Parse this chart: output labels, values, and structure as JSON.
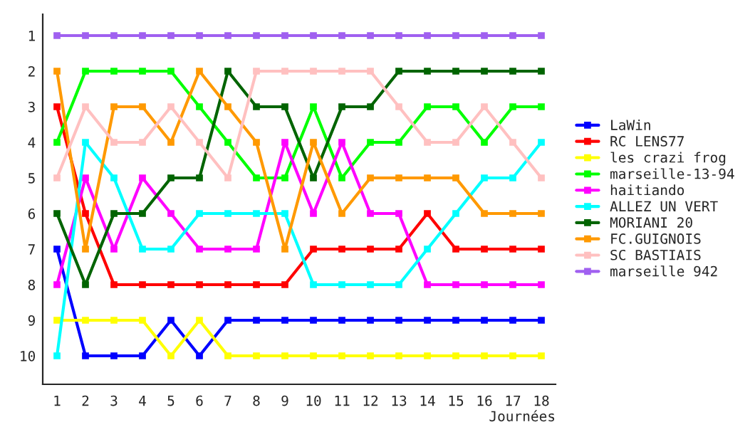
{
  "chart_data": {
    "type": "line",
    "xlabel": "Journées",
    "x": [
      1,
      2,
      3,
      4,
      5,
      6,
      7,
      8,
      9,
      10,
      11,
      12,
      13,
      14,
      15,
      16,
      17,
      18
    ],
    "xlim": [
      0.5,
      18.5
    ],
    "xticks": [
      1,
      2,
      3,
      4,
      5,
      6,
      7,
      8,
      9,
      10,
      11,
      12,
      13,
      14,
      15,
      16,
      17,
      18
    ],
    "ylim": [
      10.8,
      0.4
    ],
    "yticks": [
      1,
      2,
      3,
      4,
      5,
      6,
      7,
      8,
      9,
      10
    ],
    "grid": false,
    "legend": "right",
    "marker": "square",
    "line_style": "solid",
    "series": [
      {
        "name": "LaWin",
        "color": "#0000ff",
        "values": [
          7,
          10,
          10,
          10,
          9,
          10,
          9,
          9,
          9,
          9,
          9,
          9,
          9,
          9,
          9,
          9,
          9,
          9
        ]
      },
      {
        "name": "RC LENS77",
        "color": "#ff0000",
        "values": [
          3,
          6,
          8,
          8,
          8,
          8,
          8,
          8,
          8,
          7,
          7,
          7,
          7,
          6,
          7,
          7,
          7,
          7
        ]
      },
      {
        "name": "les crazi frog",
        "color": "#ffff00",
        "values": [
          9,
          9,
          9,
          9,
          10,
          9,
          10,
          10,
          10,
          10,
          10,
          10,
          10,
          10,
          10,
          10,
          10,
          10
        ]
      },
      {
        "name": "marseille-13-94",
        "color": "#00ff00",
        "values": [
          4,
          2,
          2,
          2,
          2,
          3,
          4,
          5,
          5,
          3,
          5,
          4,
          4,
          3,
          3,
          4,
          3,
          3
        ]
      },
      {
        "name": "haitiando",
        "color": "#ff00ff",
        "values": [
          8,
          5,
          7,
          5,
          6,
          7,
          7,
          7,
          4,
          6,
          4,
          6,
          6,
          8,
          8,
          8,
          8,
          8
        ]
      },
      {
        "name": "ALLEZ UN VERT",
        "color": "#00ffff",
        "values": [
          10,
          4,
          5,
          7,
          7,
          6,
          6,
          6,
          6,
          8,
          8,
          8,
          8,
          7,
          6,
          5,
          5,
          4
        ]
      },
      {
        "name": "MORIANI 20",
        "color": "#006400",
        "values": [
          6,
          8,
          6,
          6,
          5,
          5,
          2,
          3,
          3,
          5,
          3,
          3,
          2,
          2,
          2,
          2,
          2,
          2
        ]
      },
      {
        "name": "FC.GUIGNOIS",
        "color": "#ff9900",
        "values": [
          2,
          7,
          3,
          3,
          4,
          2,
          3,
          4,
          7,
          4,
          6,
          5,
          5,
          5,
          5,
          6,
          6,
          6
        ]
      },
      {
        "name": "SC BASTIAIS",
        "color": "#ffc0c0",
        "values": [
          5,
          3,
          4,
          4,
          3,
          4,
          5,
          2,
          2,
          2,
          2,
          2,
          3,
          4,
          4,
          3,
          4,
          5
        ]
      },
      {
        "name": "marseille 942",
        "color": "#a060f0",
        "values": [
          1,
          1,
          1,
          1,
          1,
          1,
          1,
          1,
          1,
          1,
          1,
          1,
          1,
          1,
          1,
          1,
          1,
          1
        ]
      }
    ]
  }
}
